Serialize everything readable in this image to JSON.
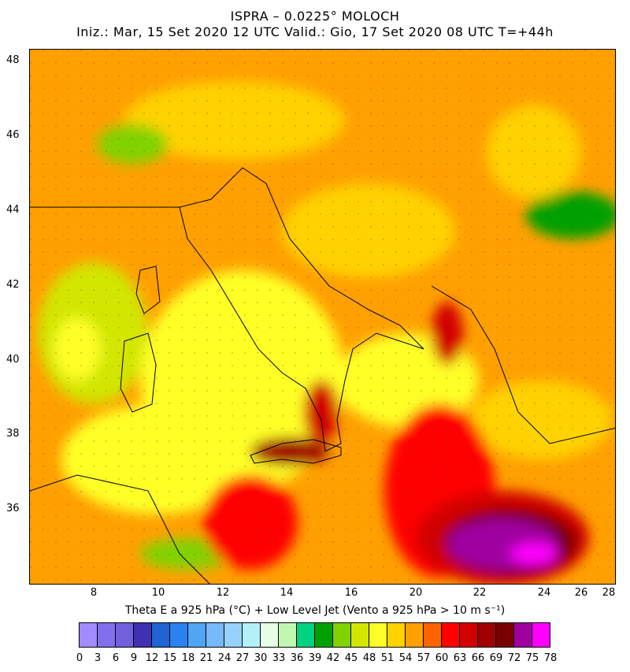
{
  "header": {
    "title": "ISPRA – 0.0225° MOLOCH",
    "subtitle": "Iniz.: Mar, 15 Set 2020  12 UTC  Valid.: Gio, 17 Set 2020  08 UTC  T=+44h"
  },
  "map": {
    "lat_ticks": [
      "48",
      "46",
      "44",
      "42",
      "40",
      "38",
      "36"
    ],
    "lon_ticks": [
      "8",
      "10",
      "12",
      "14",
      "16",
      "20",
      "22",
      "24",
      "26",
      "28"
    ]
  },
  "colorbar": {
    "title": "Theta E a 925 hPa (°C) + Low Level Jet (Vento a 925 hPa > 10 m s⁻¹)",
    "labels": [
      "0",
      "3",
      "6",
      "9",
      "12",
      "15",
      "18",
      "21",
      "24",
      "27",
      "30",
      "33",
      "36",
      "39",
      "42",
      "45",
      "48",
      "51",
      "54",
      "57",
      "60",
      "63",
      "66",
      "69",
      "72",
      "75",
      "78"
    ],
    "colors": [
      "#a08cff",
      "#8070ee",
      "#7060dc",
      "#4030b4",
      "#1e64d2",
      "#2882f0",
      "#50a5f5",
      "#78b9fa",
      "#96d2fa",
      "#b4f0fa",
      "#e6ffe6",
      "#c0f8b0",
      "#00d282",
      "#00a000",
      "#82d200",
      "#d2e600",
      "#ffff28",
      "#ffd200",
      "#ffa000",
      "#ff6400",
      "#ff0000",
      "#d20000",
      "#a00000",
      "#780000",
      "#a000a0",
      "#ff00ff"
    ]
  }
}
